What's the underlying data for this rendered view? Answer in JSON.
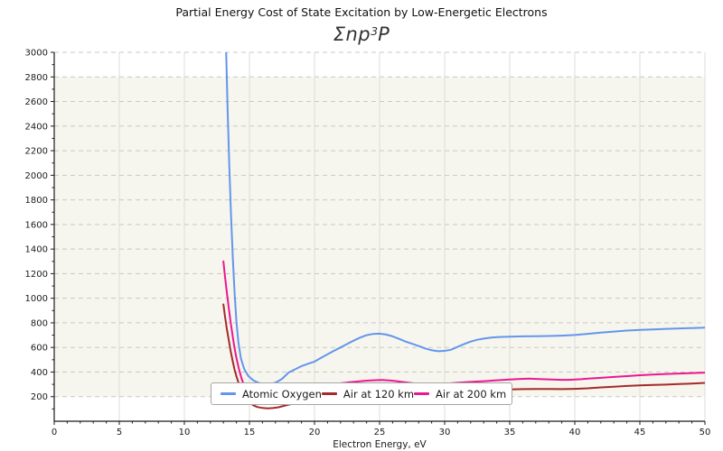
{
  "chart_data": {
    "type": "line",
    "title": "Partial Energy Cost of State Excitation by Low-Energetic Electrons",
    "subtitle": "Σnp³P",
    "subtitle_parts": {
      "base": "Σnp",
      "sup": "3",
      "tail": "P"
    },
    "xlabel": "Electron Energy, eV",
    "ylabel": "",
    "xlim": [
      0,
      50
    ],
    "ylim": [
      0,
      3000
    ],
    "xticks": [
      0,
      5,
      10,
      15,
      20,
      25,
      30,
      35,
      40,
      45,
      50
    ],
    "yticks": [
      200,
      400,
      600,
      800,
      1000,
      1200,
      1400,
      1600,
      1800,
      2000,
      2200,
      2400,
      2600,
      2800,
      3000
    ],
    "x_minor_step": 1,
    "y_minor_step": 100,
    "grid": {
      "vertical": "solid",
      "horizontal": "dashed"
    },
    "legend_position": "lower center",
    "shaded_band": [
      200,
      2800
    ],
    "colors": {
      "band": "#f6f6ee",
      "vertical_grid": "#dcdcdc",
      "horizontal_grid": "#c8c8c8",
      "spine": "#1a1a1a"
    },
    "series": [
      {
        "name": "Atomic Oxygen",
        "color": "#6495ed",
        "points": [
          [
            13.2,
            3050
          ],
          [
            13.32,
            2550
          ],
          [
            13.45,
            2080
          ],
          [
            13.58,
            1680
          ],
          [
            13.72,
            1330
          ],
          [
            13.86,
            1040
          ],
          [
            14.0,
            810
          ],
          [
            14.15,
            640
          ],
          [
            14.35,
            510
          ],
          [
            14.6,
            425
          ],
          [
            14.9,
            370
          ],
          [
            15.3,
            332
          ],
          [
            15.7,
            312
          ],
          [
            16.1,
            304
          ],
          [
            16.5,
            303
          ],
          [
            17.0,
            313
          ],
          [
            17.5,
            344
          ],
          [
            18.0,
            395
          ],
          [
            18.5,
            422
          ],
          [
            19.0,
            448
          ],
          [
            19.5,
            467
          ],
          [
            20.0,
            485
          ],
          [
            20.5,
            515
          ],
          [
            21.0,
            545
          ],
          [
            21.5,
            573
          ],
          [
            22.0,
            600
          ],
          [
            22.5,
            628
          ],
          [
            23.0,
            655
          ],
          [
            23.5,
            680
          ],
          [
            24.0,
            700
          ],
          [
            24.5,
            710
          ],
          [
            25.0,
            712
          ],
          [
            25.5,
            705
          ],
          [
            26.0,
            690
          ],
          [
            26.5,
            670
          ],
          [
            27.0,
            648
          ],
          [
            27.5,
            630
          ],
          [
            28.0,
            612
          ],
          [
            28.5,
            592
          ],
          [
            29.0,
            577
          ],
          [
            29.5,
            569
          ],
          [
            30.0,
            572
          ],
          [
            30.5,
            582
          ],
          [
            31.0,
            605
          ],
          [
            31.5,
            628
          ],
          [
            32.0,
            648
          ],
          [
            32.5,
            662
          ],
          [
            33.0,
            672
          ],
          [
            33.5,
            679
          ],
          [
            34.0,
            684
          ],
          [
            35.0,
            688
          ],
          [
            36.0,
            690
          ],
          [
            37.0,
            691
          ],
          [
            38.0,
            693
          ],
          [
            39.0,
            696
          ],
          [
            40.0,
            701
          ],
          [
            41.0,
            711
          ],
          [
            42.0,
            721
          ],
          [
            43.0,
            729
          ],
          [
            44.0,
            737
          ],
          [
            45.0,
            743
          ],
          [
            46.0,
            747
          ],
          [
            47.0,
            751
          ],
          [
            48.0,
            755
          ],
          [
            49.0,
            758
          ],
          [
            50.0,
            761
          ]
        ]
      },
      {
        "name": "Air at 120 km",
        "color": "#a52a2a",
        "points": [
          [
            13.0,
            950
          ],
          [
            13.12,
            855
          ],
          [
            13.25,
            760
          ],
          [
            13.4,
            665
          ],
          [
            13.55,
            575
          ],
          [
            13.7,
            495
          ],
          [
            13.85,
            425
          ],
          [
            14.0,
            365
          ],
          [
            14.2,
            300
          ],
          [
            14.4,
            248
          ],
          [
            14.6,
            207
          ],
          [
            14.8,
            176
          ],
          [
            15.0,
            152
          ],
          [
            15.3,
            130
          ],
          [
            15.6,
            116
          ],
          [
            16.0,
            108
          ],
          [
            16.4,
            105
          ],
          [
            16.8,
            107
          ],
          [
            17.2,
            113
          ],
          [
            17.6,
            124
          ],
          [
            18.0,
            135
          ],
          [
            18.5,
            145
          ],
          [
            19.0,
            153
          ],
          [
            19.5,
            160
          ],
          [
            20.0,
            166
          ],
          [
            21.0,
            178
          ],
          [
            22.0,
            189
          ],
          [
            23.0,
            199
          ],
          [
            24.0,
            208
          ],
          [
            25.0,
            216
          ],
          [
            26.0,
            224
          ],
          [
            27.0,
            231
          ],
          [
            28.0,
            237
          ],
          [
            29.0,
            242
          ],
          [
            30.0,
            246
          ],
          [
            31.0,
            250
          ],
          [
            32.0,
            252
          ],
          [
            33.0,
            254
          ],
          [
            34.0,
            256
          ],
          [
            35.0,
            258
          ],
          [
            36.0,
            261
          ],
          [
            37.0,
            262
          ],
          [
            38.0,
            262
          ],
          [
            39.0,
            261
          ],
          [
            40.0,
            263
          ],
          [
            41.0,
            268
          ],
          [
            42.0,
            275
          ],
          [
            43.0,
            281
          ],
          [
            44.0,
            287
          ],
          [
            45.0,
            291
          ],
          [
            46.0,
            295
          ],
          [
            47.0,
            298
          ],
          [
            48.0,
            302
          ],
          [
            49.0,
            306
          ],
          [
            50.0,
            312
          ]
        ]
      },
      {
        "name": "Air at 200 km",
        "color": "#ed1790",
        "points": [
          [
            13.0,
            1300
          ],
          [
            13.12,
            1180
          ],
          [
            13.25,
            1060
          ],
          [
            13.4,
            930
          ],
          [
            13.55,
            810
          ],
          [
            13.7,
            700
          ],
          [
            13.85,
            600
          ],
          [
            14.0,
            515
          ],
          [
            14.2,
            420
          ],
          [
            14.4,
            345
          ],
          [
            14.6,
            290
          ],
          [
            14.85,
            245
          ],
          [
            15.1,
            215
          ],
          [
            15.4,
            196
          ],
          [
            15.8,
            184
          ],
          [
            16.2,
            180
          ],
          [
            16.7,
            184
          ],
          [
            17.2,
            194
          ],
          [
            17.7,
            208
          ],
          [
            18.2,
            224
          ],
          [
            18.7,
            240
          ],
          [
            19.2,
            256
          ],
          [
            19.7,
            270
          ],
          [
            20.2,
            281
          ],
          [
            20.7,
            291
          ],
          [
            21.2,
            299
          ],
          [
            21.7,
            305
          ],
          [
            22.2,
            311
          ],
          [
            22.7,
            317
          ],
          [
            23.2,
            322
          ],
          [
            23.7,
            327
          ],
          [
            24.2,
            331
          ],
          [
            24.7,
            334
          ],
          [
            25.2,
            335
          ],
          [
            25.7,
            332
          ],
          [
            26.2,
            327
          ],
          [
            26.7,
            320
          ],
          [
            27.2,
            313
          ],
          [
            27.7,
            307
          ],
          [
            28.2,
            302
          ],
          [
            28.7,
            299
          ],
          [
            29.2,
            298
          ],
          [
            29.7,
            301
          ],
          [
            30.2,
            306
          ],
          [
            30.7,
            311
          ],
          [
            31.2,
            315
          ],
          [
            32.0,
            320
          ],
          [
            33.0,
            326
          ],
          [
            34.0,
            333
          ],
          [
            35.0,
            339
          ],
          [
            35.5,
            342
          ],
          [
            36.0,
            345
          ],
          [
            36.5,
            346
          ],
          [
            37.0,
            344
          ],
          [
            37.5,
            342
          ],
          [
            38.0,
            340
          ],
          [
            38.5,
            338
          ],
          [
            39.0,
            337
          ],
          [
            39.5,
            337
          ],
          [
            40.0,
            339
          ],
          [
            40.5,
            342
          ],
          [
            41.0,
            346
          ],
          [
            42.0,
            353
          ],
          [
            43.0,
            360
          ],
          [
            44.0,
            367
          ],
          [
            45.0,
            374
          ],
          [
            46.0,
            379
          ],
          [
            47.0,
            384
          ],
          [
            48.0,
            388
          ],
          [
            49.0,
            392
          ],
          [
            50.0,
            395
          ]
        ]
      }
    ]
  }
}
